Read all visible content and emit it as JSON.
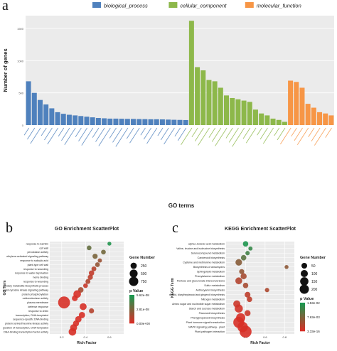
{
  "panels": {
    "a": "a",
    "b": "b",
    "c": "c"
  },
  "chart_data": [
    {
      "type": "bar",
      "panel": "a",
      "title": "",
      "xlabel": "GO terms",
      "ylabel": "Number of genes",
      "ylim": [
        0,
        1700
      ],
      "yticks": [
        0,
        500,
        1000,
        1500
      ],
      "grid": true,
      "legend_position": "top",
      "legend": [
        {
          "name": "biological_process",
          "color": "#4F81BD"
        },
        {
          "name": "cellular_component",
          "color": "#8DB84A"
        },
        {
          "name": "molecular_function",
          "color": "#F79646"
        }
      ],
      "series": [
        {
          "name": "biological_process",
          "color": "#4F81BD",
          "values": [
            680,
            500,
            390,
            320,
            260,
            200,
            175,
            160,
            150,
            140,
            130,
            120,
            110,
            105,
            100,
            100,
            98,
            96,
            95,
            93,
            92,
            90,
            90,
            88,
            85,
            82,
            80,
            78
          ]
        },
        {
          "name": "cellular_component",
          "color": "#8DB84A",
          "values": [
            1620,
            900,
            850,
            700,
            680,
            580,
            460,
            420,
            400,
            380,
            360,
            240,
            180,
            150,
            100,
            80,
            50
          ]
        },
        {
          "name": "molecular_function",
          "color": "#F79646",
          "values": [
            690,
            670,
            580,
            330,
            270,
            200,
            180,
            150
          ]
        }
      ],
      "category_labels_legible": false
    },
    {
      "type": "scatter",
      "panel": "b",
      "title": "GO Enrichment ScatterPlot",
      "xlabel": "Rich Factor",
      "ylabel": "GO Term",
      "xlim": [
        0.1,
        0.72
      ],
      "xticks": [
        0.2,
        0.4,
        0.6
      ],
      "grid": true,
      "size_legend": {
        "title": "Gene Number",
        "values": [
          250,
          500,
          750
        ]
      },
      "color_legend": {
        "title": "p Value",
        "ticks": [
          "5.62e-08",
          "2.81e-08",
          "0.00e+00"
        ],
        "low_color": "#D73027",
        "high_color": "#1A9850",
        "max": 5.62e-08
      },
      "points": [
        {
          "term": "response to karrikin",
          "x": 0.6,
          "size": 30,
          "p": 5.4e-08
        },
        {
          "term": "cell wall",
          "x": 0.43,
          "size": 60,
          "p": 3.4e-08
        },
        {
          "term": "peroxidase activity",
          "x": 0.55,
          "size": 60,
          "p": 3e-08
        },
        {
          "term": "ethylene-activated signaling pathway",
          "x": 0.48,
          "size": 80,
          "p": 2.8e-08
        },
        {
          "term": "response to salicylic acid",
          "x": 0.52,
          "size": 40,
          "p": 1.8e-08
        },
        {
          "term": "plant-type cell wall",
          "x": 0.5,
          "size": 60,
          "p": 2e-08
        },
        {
          "term": "response to wounding",
          "x": 0.47,
          "size": 70,
          "p": 1e-08
        },
        {
          "term": "response to water deprivation",
          "x": 0.45,
          "size": 90,
          "p": 6e-09
        },
        {
          "term": "heme binding",
          "x": 0.44,
          "size": 80,
          "p": 8e-09
        },
        {
          "term": "response to wounding",
          "x": 0.42,
          "size": 70,
          "p": 1.2e-08
        },
        {
          "term": "secondary metabolite biosynthetic process",
          "x": 0.4,
          "size": 60,
          "p": 5e-09
        },
        {
          "term": "transmembrane receptor protein tyrosine kinase signaling pathway",
          "x": 0.36,
          "size": 100,
          "p": 1.5e-08
        },
        {
          "term": "protein phosphorylation",
          "x": 0.33,
          "size": 250,
          "p": 0
        },
        {
          "term": "oxidoreductase activity",
          "x": 0.31,
          "size": 120,
          "p": 0
        },
        {
          "term": "plasma membrane",
          "x": 0.22,
          "size": 800,
          "p": 0
        },
        {
          "term": "defense response",
          "x": 0.38,
          "size": 200,
          "p": 0
        },
        {
          "term": "response to chitin",
          "x": 0.45,
          "size": 80,
          "p": 1e-08
        },
        {
          "term": "transcription, DNA-templated",
          "x": 0.37,
          "size": 150,
          "p": 0
        },
        {
          "term": "sequence-specific DNA binding",
          "x": 0.34,
          "size": 150,
          "p": 0
        },
        {
          "term": "protein serine/threonine kinase activity",
          "x": 0.32,
          "size": 130,
          "p": 0
        },
        {
          "term": "regulation of transcription, DNA-templated",
          "x": 0.3,
          "size": 200,
          "p": 0
        },
        {
          "term": "DNA-binding transcription factor activity",
          "x": 0.29,
          "size": 250,
          "p": 0
        }
      ]
    },
    {
      "type": "scatter",
      "panel": "c",
      "title": "KEGG Enrichment ScatterPlot",
      "xlabel": "Rich Factor",
      "ylabel": "KEGG Term",
      "xlim": [
        0.2,
        0.9
      ],
      "xticks": [
        0.4,
        0.6,
        0.8
      ],
      "grid": true,
      "size_legend": {
        "title": "Gene Number",
        "values": [
          50,
          100,
          150,
          200
        ]
      },
      "color_legend": {
        "title": "p Value",
        "ticks": [
          "1.53e-02",
          "7.63e-03",
          "3.33e-16"
        ],
        "low_color": "#D73027",
        "high_color": "#1A9850",
        "max": 0.0153
      },
      "points": [
        {
          "term": "alpha-Linolenic acid metabolism",
          "x": 0.4,
          "size": 25,
          "p": 0.015
        },
        {
          "term": "Valine, leucine and isoleucine biosynthesis",
          "x": 0.45,
          "size": 10,
          "p": 0.013
        },
        {
          "term": "Selenocompound metabolism",
          "x": 0.42,
          "size": 12,
          "p": 0.012
        },
        {
          "term": "Carotenoid biosynthesis",
          "x": 0.38,
          "size": 25,
          "p": 0.01
        },
        {
          "term": "Cysteine and methionine metabolism",
          "x": 0.33,
          "size": 45,
          "p": 0.0065
        },
        {
          "term": "Biosynthesis of ansamycins",
          "x": 0.82,
          "size": 8,
          "p": 0.006
        },
        {
          "term": "Sphingolipid metabolism",
          "x": 0.36,
          "size": 20,
          "p": 0.0055
        },
        {
          "term": "Phenylalanine metabolism",
          "x": 0.38,
          "size": 35,
          "p": 0.004
        },
        {
          "term": "Pentose and glucuronate interconversions",
          "x": 0.33,
          "size": 50,
          "p": 0.003
        },
        {
          "term": "Sulfur metabolism",
          "x": 0.4,
          "size": 25,
          "p": 0.004
        },
        {
          "term": "Anthocyanin biosynthesis",
          "x": 0.62,
          "size": 12,
          "p": 0.0035
        },
        {
          "term": "Stilbenoid, diarylheptanoid and gingerol biosynthesis",
          "x": 0.42,
          "size": 30,
          "p": 0.002
        },
        {
          "term": "Nitrogen metabolism",
          "x": 0.44,
          "size": 25,
          "p": 0.002
        },
        {
          "term": "Amino sugar and nucleotide sugar metabolism",
          "x": 0.31,
          "size": 55,
          "p": 0.001
        },
        {
          "term": "Starch and sucrose metabolism",
          "x": 0.33,
          "size": 80,
          "p": 0.0005
        },
        {
          "term": "Flavonoid biosynthesis",
          "x": 0.42,
          "size": 35,
          "p": 0.001
        },
        {
          "term": "Phenylpropanoid biosynthesis",
          "x": 0.35,
          "size": 110,
          "p": 0
        },
        {
          "term": "Plant hormone signal transduction",
          "x": 0.33,
          "size": 170,
          "p": 0
        },
        {
          "term": "MAPK signaling pathway - plant",
          "x": 0.37,
          "size": 150,
          "p": 0
        },
        {
          "term": "Plant-pathogen interaction",
          "x": 0.4,
          "size": 210,
          "p": 0
        }
      ]
    }
  ]
}
